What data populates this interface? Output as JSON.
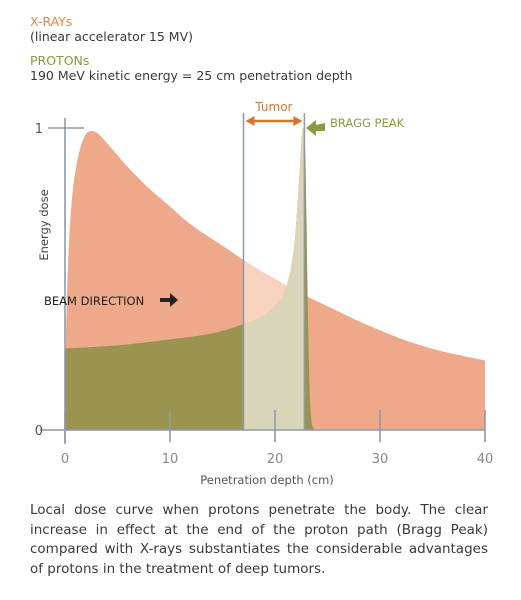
{
  "legend": {
    "xray_title": "X-RAYs",
    "xray_sub": "(linear accelerator 15 MV)",
    "proton_title": "PROTONs",
    "proton_sub": "190 MeV kinetic energy = 25 cm penetration depth"
  },
  "caption": "Local dose curve when protons penetrate the body. The clear increase in effect at the end of the proton path (Bragg Peak) compared with X-rays substantiates the considerable advantages of protons in the treatment of deep tumors.",
  "colors": {
    "xray": "#eda98a",
    "xray_light": "#f7d3bf",
    "proton": "#9b9450",
    "tumor_band": "#d9d5bb",
    "tumor_arrow": "#d9742f",
    "bragg_arrow": "#8a9a3e",
    "axis": "#8e9aa8"
  },
  "chart_data": {
    "type": "area",
    "title": "",
    "xlabel": "Penetration depth (cm)",
    "ylabel": "Energy dose",
    "xlim": [
      0,
      40
    ],
    "ylim": [
      0,
      1
    ],
    "xticks": [
      0,
      10,
      20,
      30,
      40
    ],
    "yticks": [
      0,
      1
    ],
    "xtick_labels": [
      "0",
      "10",
      "20",
      "30",
      "40"
    ],
    "ytick_labels": [
      "0",
      "1"
    ],
    "tumor_range": [
      17,
      22.8
    ],
    "tumor_label": "Tumor",
    "bragg_label": "BRAGG PEAK",
    "beam_label": "BEAM DIRECTION",
    "series": [
      {
        "name": "X-RAYs",
        "x": [
          0,
          0.1,
          0.3,
          0.6,
          1,
          1.5,
          2,
          2.5,
          3,
          3.5,
          4,
          5,
          6,
          8,
          10,
          12,
          15,
          18,
          20,
          22,
          25,
          28,
          30,
          33,
          36,
          40
        ],
        "y": [
          0,
          0.32,
          0.56,
          0.74,
          0.86,
          0.94,
          0.98,
          0.99,
          0.985,
          0.97,
          0.95,
          0.91,
          0.87,
          0.8,
          0.74,
          0.68,
          0.61,
          0.54,
          0.5,
          0.46,
          0.41,
          0.36,
          0.33,
          0.29,
          0.26,
          0.23
        ]
      },
      {
        "name": "PROTONs",
        "x": [
          0,
          5,
          10,
          14,
          17,
          19,
          20.5,
          21.3,
          21.8,
          22.1,
          22.35,
          22.5,
          22.6,
          22.7,
          22.8,
          22.9,
          23.0,
          23.1,
          23.25,
          23.4,
          23.6,
          24
        ],
        "y": [
          0.27,
          0.28,
          0.3,
          0.32,
          0.35,
          0.38,
          0.43,
          0.5,
          0.6,
          0.72,
          0.86,
          0.95,
          0.985,
          1.0,
          0.98,
          0.9,
          0.7,
          0.45,
          0.2,
          0.06,
          0.01,
          0
        ]
      }
    ]
  }
}
